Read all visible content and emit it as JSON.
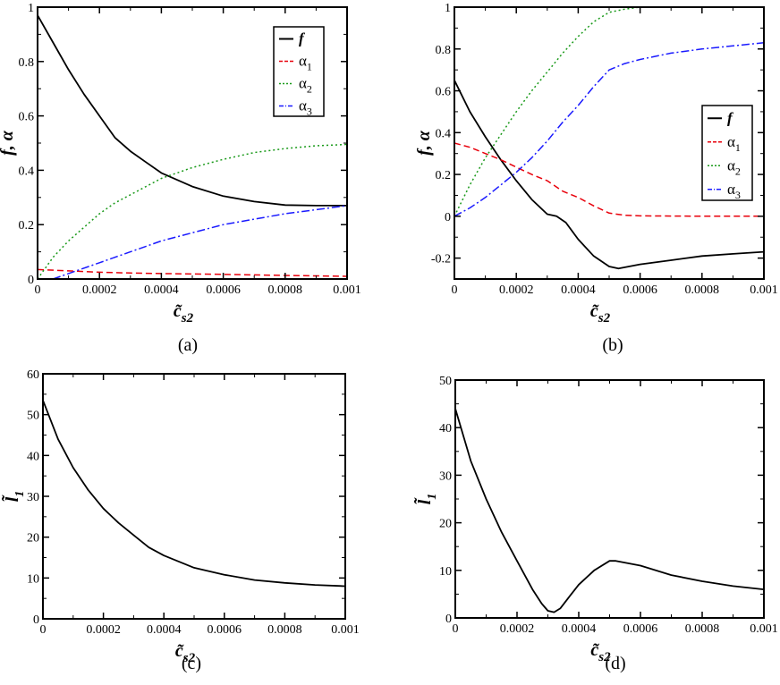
{
  "chart_data": [
    {
      "panel": "a",
      "type": "line",
      "caption": "(a)",
      "xlabel": "c̃",
      "xlabel_sub": "s2",
      "ylabel": "f, α",
      "xlim": [
        0,
        0.001
      ],
      "ylim": [
        0,
        1
      ],
      "xticks": [
        0,
        0.0002,
        0.0004,
        0.0006,
        0.0008,
        0.001
      ],
      "xtick_labels": [
        "0",
        "0.0002",
        "0.0004",
        "0.0006",
        "0.0008",
        "0.001"
      ],
      "yticks": [
        0,
        0.2,
        0.4,
        0.6,
        0.8,
        1
      ],
      "ytick_labels": [
        "0",
        "0.2",
        "0.4",
        "0.6",
        "0.8",
        "1"
      ],
      "legend_position": "top-right",
      "series": [
        {
          "name": "f",
          "color": "#000000",
          "style": "solid",
          "x": [
            0,
            5e-05,
            0.0001,
            0.00015,
            0.0002,
            0.00025,
            0.0003,
            0.00035,
            0.0004,
            0.0005,
            0.0006,
            0.0007,
            0.0008,
            0.0009,
            0.001
          ],
          "y": [
            0.97,
            0.87,
            0.77,
            0.68,
            0.6,
            0.52,
            0.47,
            0.43,
            0.39,
            0.34,
            0.305,
            0.285,
            0.272,
            0.27,
            0.27
          ]
        },
        {
          "name": "α",
          "sub": "1",
          "color": "#e8000b",
          "style": "dashed",
          "x": [
            0,
            0.0001,
            0.0002,
            0.0003,
            0.0004,
            0.0006,
            0.0008,
            0.001
          ],
          "y": [
            0.035,
            0.03,
            0.025,
            0.022,
            0.02,
            0.017,
            0.013,
            0.01
          ]
        },
        {
          "name": "α",
          "sub": "2",
          "color": "#1a9a1a",
          "style": "dotted",
          "x": [
            0,
            5e-05,
            0.0001,
            0.00015,
            0.0002,
            0.00025,
            0.0003,
            0.0004,
            0.0005,
            0.0006,
            0.0007,
            0.0008,
            0.0009,
            0.001
          ],
          "y": [
            0,
            0.08,
            0.14,
            0.19,
            0.24,
            0.28,
            0.31,
            0.37,
            0.41,
            0.44,
            0.465,
            0.48,
            0.49,
            0.495
          ]
        },
        {
          "name": "α",
          "sub": "3",
          "color": "#1a1aff",
          "style": "dashdot",
          "x": [
            0,
            5e-05,
            0.0001,
            0.0002,
            0.0003,
            0.0004,
            0.0005,
            0.0006,
            0.0007,
            0.0008,
            0.0009,
            0.001
          ],
          "y": [
            0,
            0.0,
            0.02,
            0.06,
            0.1,
            0.14,
            0.17,
            0.2,
            0.22,
            0.24,
            0.255,
            0.27
          ]
        }
      ]
    },
    {
      "panel": "b",
      "type": "line",
      "caption": "(b)",
      "xlabel": "c̃",
      "xlabel_sub": "s2",
      "ylabel": "f, α",
      "xlim": [
        0,
        0.001
      ],
      "ylim": [
        -0.3,
        1
      ],
      "xticks": [
        0,
        0.0002,
        0.0004,
        0.0006,
        0.0008,
        0.001
      ],
      "xtick_labels": [
        "0",
        "0.0002",
        "0.0004",
        "0.0006",
        "0.0008",
        "0.001"
      ],
      "yticks": [
        -0.2,
        0,
        0.2,
        0.4,
        0.6,
        0.8,
        1
      ],
      "ytick_labels": [
        "-0.2",
        "0",
        "0.2",
        "0.4",
        "0.6",
        "0.8",
        "1"
      ],
      "legend_position": "right",
      "series": [
        {
          "name": "f",
          "color": "#000000",
          "style": "solid",
          "x": [
            0,
            5e-05,
            0.0001,
            0.00015,
            0.0002,
            0.00025,
            0.0003,
            0.00033,
            0.00036,
            0.0004,
            0.00045,
            0.0005,
            0.00053,
            0.0006,
            0.0007,
            0.0008,
            0.0009,
            0.001
          ],
          "y": [
            0.65,
            0.5,
            0.38,
            0.27,
            0.17,
            0.08,
            0.01,
            0.0,
            -0.03,
            -0.11,
            -0.19,
            -0.24,
            -0.25,
            -0.23,
            -0.21,
            -0.19,
            -0.18,
            -0.17
          ]
        },
        {
          "name": "α",
          "sub": "1",
          "color": "#e8000b",
          "style": "dashed",
          "x": [
            0,
            5e-05,
            0.0001,
            0.00015,
            0.0002,
            0.00025,
            0.0003,
            0.00035,
            0.0004,
            0.00045,
            0.0005,
            0.00055,
            0.0006,
            0.0008,
            0.001
          ],
          "y": [
            0.35,
            0.33,
            0.3,
            0.27,
            0.235,
            0.2,
            0.17,
            0.12,
            0.09,
            0.05,
            0.015,
            0.005,
            0.002,
            0.0,
            0.0
          ]
        },
        {
          "name": "α",
          "sub": "2",
          "color": "#1a9a1a",
          "style": "dotted",
          "x": [
            0,
            5e-05,
            0.0001,
            0.00015,
            0.0002,
            0.00025,
            0.0003,
            0.00035,
            0.0004,
            0.00045,
            0.0005,
            0.00055,
            0.0006,
            0.0008,
            0.001
          ],
          "y": [
            0,
            0.15,
            0.28,
            0.39,
            0.5,
            0.6,
            0.69,
            0.78,
            0.86,
            0.93,
            0.975,
            0.99,
            1.0,
            1.0,
            1.0
          ]
        },
        {
          "name": "α",
          "sub": "3",
          "color": "#1a1aff",
          "style": "dashdot",
          "x": [
            0,
            5e-05,
            0.0001,
            0.00015,
            0.0002,
            0.00025,
            0.0003,
            0.00035,
            0.0004,
            0.00045,
            0.0005,
            0.00055,
            0.0006,
            0.0007,
            0.0008,
            0.0009,
            0.001
          ],
          "y": [
            0,
            0.04,
            0.09,
            0.15,
            0.21,
            0.28,
            0.36,
            0.45,
            0.53,
            0.62,
            0.7,
            0.73,
            0.75,
            0.78,
            0.8,
            0.815,
            0.83
          ]
        }
      ]
    },
    {
      "panel": "c",
      "type": "line",
      "caption": "(c)",
      "xlabel": "c̃",
      "xlabel_sub": "s2",
      "ylabel": "l̃",
      "ylabel_sub": "1",
      "xlim": [
        0,
        0.001
      ],
      "ylim": [
        0,
        60
      ],
      "xticks": [
        0,
        0.0002,
        0.0004,
        0.0006,
        0.0008,
        0.001
      ],
      "xtick_labels": [
        "0",
        "0.0002",
        "0.0004",
        "0.0006",
        "0.0008",
        "0.001"
      ],
      "yticks": [
        0,
        10,
        20,
        30,
        40,
        50,
        60
      ],
      "ytick_labels": [
        "0",
        "10",
        "20",
        "30",
        "40",
        "50",
        "60"
      ],
      "series": [
        {
          "color": "#000000",
          "style": "solid",
          "x": [
            0,
            5e-05,
            0.0001,
            0.00015,
            0.0002,
            0.00025,
            0.0003,
            0.00035,
            0.0004,
            0.0005,
            0.0006,
            0.0007,
            0.0008,
            0.0009,
            0.001
          ],
          "y": [
            53.5,
            44,
            37,
            31.5,
            27,
            23.5,
            20.5,
            17.5,
            15.5,
            12.5,
            10.8,
            9.5,
            8.8,
            8.3,
            8
          ]
        }
      ]
    },
    {
      "panel": "d",
      "type": "line",
      "caption": "(d)",
      "xlabel": "c̃",
      "xlabel_sub": "s2",
      "ylabel": "l̃",
      "ylabel_sub": "1",
      "xlim": [
        0,
        0.001
      ],
      "ylim": [
        0,
        50
      ],
      "xticks": [
        0,
        0.0002,
        0.0004,
        0.0006,
        0.0008,
        0.001
      ],
      "xtick_labels": [
        "0",
        "0.0002",
        "0.0004",
        "0.0006",
        "0.0008",
        "0.001"
      ],
      "yticks": [
        0,
        10,
        20,
        30,
        40,
        50
      ],
      "ytick_labels": [
        "0",
        "10",
        "20",
        "30",
        "40",
        "50"
      ],
      "series": [
        {
          "color": "#000000",
          "style": "solid",
          "x": [
            0,
            5e-05,
            0.0001,
            0.00015,
            0.0002,
            0.00025,
            0.00028,
            0.0003,
            0.00032,
            0.00034,
            0.00037,
            0.0004,
            0.00045,
            0.0005,
            0.00052,
            0.0006,
            0.0007,
            0.0008,
            0.0009,
            0.001
          ],
          "y": [
            44,
            33,
            25,
            18,
            12,
            6,
            3,
            1.5,
            1.2,
            2,
            4.5,
            7,
            10,
            12,
            12,
            11,
            9,
            7.7,
            6.7,
            6
          ]
        }
      ]
    }
  ]
}
